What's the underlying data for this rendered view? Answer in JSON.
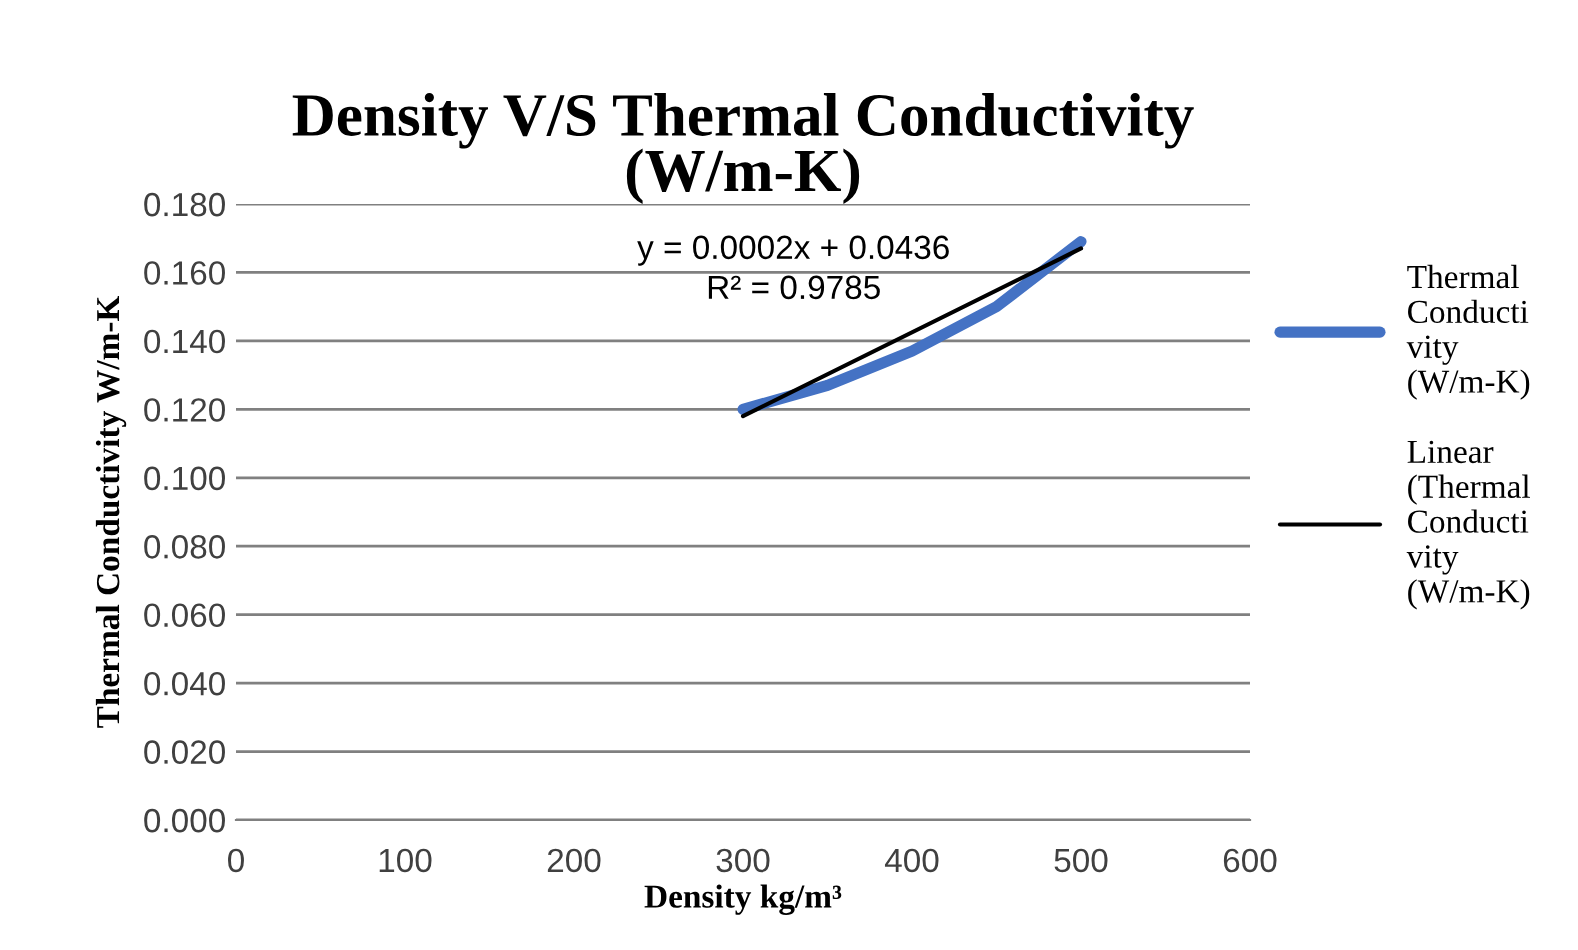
{
  "chart_data": {
    "type": "line",
    "title": "Density V/S Thermal Conductivity\n(W/m-K)",
    "xlabel": "Density kg/m³",
    "ylabel": "Thermal Conductivity W/m-K",
    "series": [
      {
        "name": "Thermal Conductivity (W/m-K)",
        "color": "#4472c4",
        "x": [
          300,
          350,
          400,
          450,
          500
        ],
        "values": [
          0.12,
          0.127,
          0.137,
          0.15,
          0.169
        ]
      },
      {
        "name": "Linear (Thermal Conductivity (W/m-K)",
        "color": "#000000",
        "x": [
          300,
          500
        ],
        "values": [
          0.118,
          0.167
        ]
      }
    ],
    "annotations": [
      "y = 0.0002x + 0.0436",
      "R² = 0.9785"
    ],
    "xlim": [
      0,
      600
    ],
    "xticks": [
      0,
      100,
      200,
      300,
      400,
      500,
      600
    ],
    "ylim": [
      0,
      0.18
    ],
    "yticks": [
      {
        "value": 0,
        "label": "0.000"
      },
      {
        "value": 0.02,
        "label": "0.020"
      },
      {
        "value": 0.04,
        "label": "0.040"
      },
      {
        "value": 0.06,
        "label": "0.060"
      },
      {
        "value": 0.08,
        "label": "0.080"
      },
      {
        "value": 0.1,
        "label": "0.100"
      },
      {
        "value": 0.12,
        "label": "0.120"
      },
      {
        "value": 0.14,
        "label": "0.140"
      },
      {
        "value": 0.16,
        "label": "0.160"
      },
      {
        "value": 0.18,
        "label": "0.180"
      }
    ],
    "grid": "y",
    "legend": "right",
    "marker": "none",
    "line_style": "solid"
  }
}
